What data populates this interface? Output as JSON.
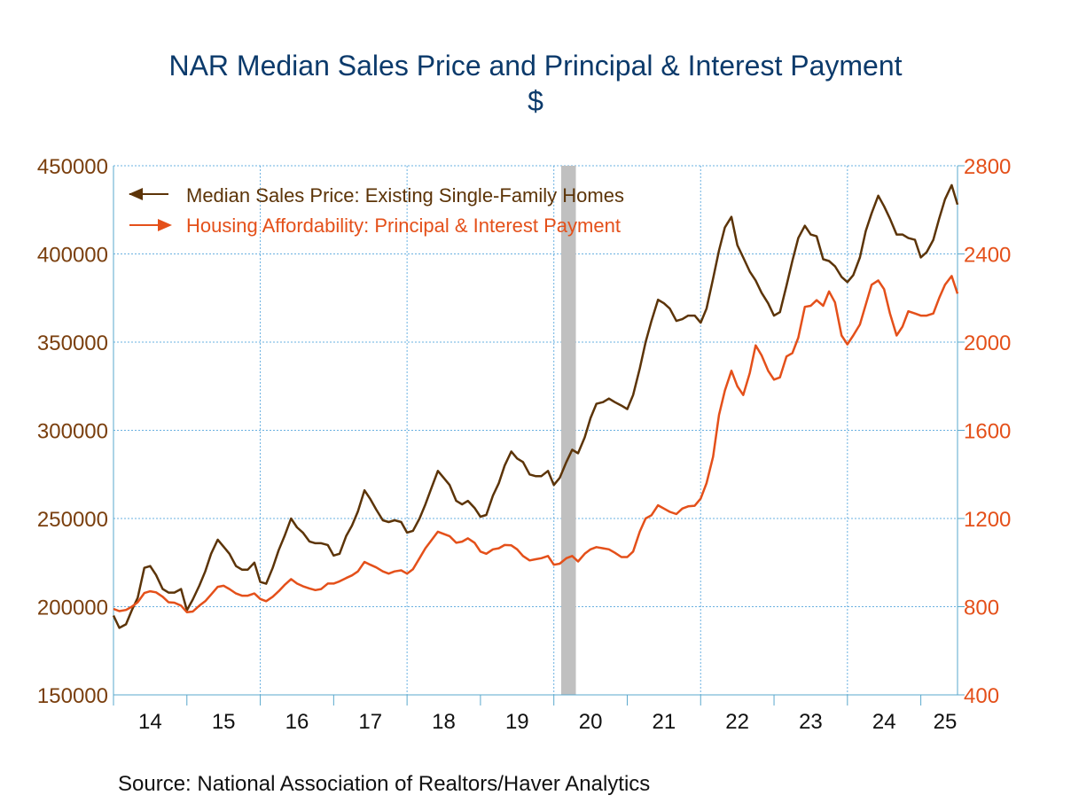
{
  "chart_data": {
    "type": "line",
    "title": "NAR Median Sales Price and Principal & Interest Payment",
    "subtitle": "$",
    "source": "Source:  National Association of Realtors/Haver Analytics",
    "x_tick_labels": [
      "14",
      "15",
      "16",
      "17",
      "18",
      "19",
      "20",
      "21",
      "22",
      "23",
      "24",
      "25"
    ],
    "x_range": [
      2014.0,
      2025.5
    ],
    "recession": {
      "start": 2020.1,
      "end": 2020.3
    },
    "y_left": {
      "range": [
        150000,
        450000
      ],
      "ticks": [
        150000,
        200000,
        250000,
        300000,
        350000,
        400000,
        450000
      ],
      "tick_labels": [
        "150000",
        "200000",
        "250000",
        "300000",
        "350000",
        "400000",
        "450000"
      ],
      "color": "#7a3f0e"
    },
    "y_right": {
      "range": [
        400,
        2800
      ],
      "ticks": [
        400,
        800,
        1200,
        1600,
        2000,
        2400,
        2800
      ],
      "tick_labels": [
        "400",
        "800",
        "1200",
        "1600",
        "2000",
        "2400",
        "2800"
      ],
      "color": "#e4501a"
    },
    "series": [
      {
        "name": "Median Sales Price: Existing Single-Family Homes",
        "axis": "left",
        "color": "#5c3408",
        "values": [
          [
            2014.0,
            195000
          ],
          [
            2014.08,
            188000
          ],
          [
            2014.17,
            190000
          ],
          [
            2014.25,
            198000
          ],
          [
            2014.33,
            205000
          ],
          [
            2014.42,
            222000
          ],
          [
            2014.5,
            223000
          ],
          [
            2014.58,
            218000
          ],
          [
            2014.67,
            210000
          ],
          [
            2014.75,
            208000
          ],
          [
            2014.83,
            208000
          ],
          [
            2014.92,
            210000
          ],
          [
            2015.0,
            198000
          ],
          [
            2015.08,
            204000
          ],
          [
            2015.17,
            212000
          ],
          [
            2015.25,
            220000
          ],
          [
            2015.33,
            230000
          ],
          [
            2015.42,
            238000
          ],
          [
            2015.5,
            234000
          ],
          [
            2015.58,
            230000
          ],
          [
            2015.67,
            223000
          ],
          [
            2015.75,
            221000
          ],
          [
            2015.83,
            221000
          ],
          [
            2015.92,
            225000
          ],
          [
            2016.0,
            214000
          ],
          [
            2016.08,
            213000
          ],
          [
            2016.17,
            222000
          ],
          [
            2016.25,
            232000
          ],
          [
            2016.33,
            240000
          ],
          [
            2016.42,
            250000
          ],
          [
            2016.5,
            245000
          ],
          [
            2016.58,
            242000
          ],
          [
            2016.67,
            237000
          ],
          [
            2016.75,
            236000
          ],
          [
            2016.83,
            236000
          ],
          [
            2016.92,
            235000
          ],
          [
            2017.0,
            229000
          ],
          [
            2017.08,
            230000
          ],
          [
            2017.17,
            240000
          ],
          [
            2017.25,
            246000
          ],
          [
            2017.33,
            254000
          ],
          [
            2017.42,
            266000
          ],
          [
            2017.5,
            261000
          ],
          [
            2017.58,
            255000
          ],
          [
            2017.67,
            249000
          ],
          [
            2017.75,
            248000
          ],
          [
            2017.83,
            249000
          ],
          [
            2017.92,
            248000
          ],
          [
            2018.0,
            242000
          ],
          [
            2018.08,
            243000
          ],
          [
            2018.17,
            250000
          ],
          [
            2018.25,
            258000
          ],
          [
            2018.33,
            267000
          ],
          [
            2018.42,
            277000
          ],
          [
            2018.5,
            273000
          ],
          [
            2018.58,
            269000
          ],
          [
            2018.67,
            260000
          ],
          [
            2018.75,
            258000
          ],
          [
            2018.83,
            260000
          ],
          [
            2018.92,
            256000
          ],
          [
            2019.0,
            251000
          ],
          [
            2019.08,
            252000
          ],
          [
            2019.17,
            263000
          ],
          [
            2019.25,
            270000
          ],
          [
            2019.33,
            280000
          ],
          [
            2019.42,
            288000
          ],
          [
            2019.5,
            284000
          ],
          [
            2019.58,
            282000
          ],
          [
            2019.67,
            275000
          ],
          [
            2019.75,
            274000
          ],
          [
            2019.83,
            274000
          ],
          [
            2019.92,
            277000
          ],
          [
            2020.0,
            269000
          ],
          [
            2020.08,
            273000
          ],
          [
            2020.17,
            282000
          ],
          [
            2020.25,
            289000
          ],
          [
            2020.33,
            287000
          ],
          [
            2020.42,
            296000
          ],
          [
            2020.5,
            307000
          ],
          [
            2020.58,
            315000
          ],
          [
            2020.67,
            316000
          ],
          [
            2020.75,
            318000
          ],
          [
            2020.83,
            316000
          ],
          [
            2020.92,
            314000
          ],
          [
            2021.0,
            312000
          ],
          [
            2021.08,
            320000
          ],
          [
            2021.17,
            335000
          ],
          [
            2021.25,
            350000
          ],
          [
            2021.33,
            362000
          ],
          [
            2021.42,
            374000
          ],
          [
            2021.5,
            372000
          ],
          [
            2021.58,
            369000
          ],
          [
            2021.67,
            362000
          ],
          [
            2021.75,
            363000
          ],
          [
            2021.83,
            365000
          ],
          [
            2021.92,
            365000
          ],
          [
            2022.0,
            361000
          ],
          [
            2022.08,
            369000
          ],
          [
            2022.17,
            386000
          ],
          [
            2022.25,
            402000
          ],
          [
            2022.33,
            415000
          ],
          [
            2022.42,
            421000
          ],
          [
            2022.5,
            405000
          ],
          [
            2022.58,
            398000
          ],
          [
            2022.67,
            390000
          ],
          [
            2022.75,
            385000
          ],
          [
            2022.83,
            378000
          ],
          [
            2022.92,
            372000
          ],
          [
            2023.0,
            365000
          ],
          [
            2023.08,
            367000
          ],
          [
            2023.17,
            382000
          ],
          [
            2023.25,
            396000
          ],
          [
            2023.33,
            409000
          ],
          [
            2023.42,
            416000
          ],
          [
            2023.5,
            411000
          ],
          [
            2023.58,
            410000
          ],
          [
            2023.67,
            397000
          ],
          [
            2023.75,
            396000
          ],
          [
            2023.83,
            393000
          ],
          [
            2023.92,
            387000
          ],
          [
            2024.0,
            384000
          ],
          [
            2024.08,
            388000
          ],
          [
            2024.17,
            398000
          ],
          [
            2024.25,
            413000
          ],
          [
            2024.33,
            423000
          ],
          [
            2024.42,
            433000
          ],
          [
            2024.5,
            427000
          ],
          [
            2024.58,
            420000
          ],
          [
            2024.67,
            411000
          ],
          [
            2024.75,
            411000
          ],
          [
            2024.83,
            409000
          ],
          [
            2024.92,
            408000
          ],
          [
            2025.0,
            398000
          ],
          [
            2025.08,
            401000
          ],
          [
            2025.17,
            408000
          ],
          [
            2025.25,
            420000
          ],
          [
            2025.33,
            431000
          ],
          [
            2025.42,
            439000
          ],
          [
            2025.5,
            428000
          ]
        ]
      },
      {
        "name": "Housing Affordability: Principal & Interest Payment",
        "axis": "right",
        "color": "#e4501a",
        "values": [
          [
            2014.0,
            790
          ],
          [
            2014.08,
            780
          ],
          [
            2014.17,
            785
          ],
          [
            2014.25,
            800
          ],
          [
            2014.33,
            820
          ],
          [
            2014.42,
            862
          ],
          [
            2014.5,
            870
          ],
          [
            2014.58,
            865
          ],
          [
            2014.67,
            845
          ],
          [
            2014.75,
            820
          ],
          [
            2014.83,
            818
          ],
          [
            2014.92,
            805
          ],
          [
            2015.0,
            775
          ],
          [
            2015.08,
            778
          ],
          [
            2015.17,
            805
          ],
          [
            2015.25,
            825
          ],
          [
            2015.33,
            855
          ],
          [
            2015.42,
            890
          ],
          [
            2015.5,
            895
          ],
          [
            2015.58,
            880
          ],
          [
            2015.67,
            860
          ],
          [
            2015.75,
            850
          ],
          [
            2015.83,
            850
          ],
          [
            2015.92,
            860
          ],
          [
            2016.0,
            835
          ],
          [
            2016.08,
            825
          ],
          [
            2016.17,
            845
          ],
          [
            2016.25,
            870
          ],
          [
            2016.33,
            898
          ],
          [
            2016.42,
            925
          ],
          [
            2016.5,
            905
          ],
          [
            2016.58,
            893
          ],
          [
            2016.67,
            883
          ],
          [
            2016.75,
            875
          ],
          [
            2016.83,
            880
          ],
          [
            2016.92,
            905
          ],
          [
            2017.0,
            905
          ],
          [
            2017.08,
            915
          ],
          [
            2017.17,
            930
          ],
          [
            2017.25,
            942
          ],
          [
            2017.33,
            960
          ],
          [
            2017.42,
            1003
          ],
          [
            2017.5,
            990
          ],
          [
            2017.58,
            978
          ],
          [
            2017.67,
            960
          ],
          [
            2017.75,
            950
          ],
          [
            2017.83,
            960
          ],
          [
            2017.92,
            965
          ],
          [
            2018.0,
            950
          ],
          [
            2018.08,
            970
          ],
          [
            2018.17,
            1020
          ],
          [
            2018.25,
            1065
          ],
          [
            2018.33,
            1100
          ],
          [
            2018.42,
            1140
          ],
          [
            2018.5,
            1130
          ],
          [
            2018.58,
            1120
          ],
          [
            2018.67,
            1090
          ],
          [
            2018.75,
            1095
          ],
          [
            2018.83,
            1110
          ],
          [
            2018.92,
            1090
          ],
          [
            2019.0,
            1050
          ],
          [
            2019.08,
            1040
          ],
          [
            2019.17,
            1060
          ],
          [
            2019.25,
            1065
          ],
          [
            2019.33,
            1080
          ],
          [
            2019.42,
            1078
          ],
          [
            2019.5,
            1060
          ],
          [
            2019.58,
            1030
          ],
          [
            2019.67,
            1010
          ],
          [
            2019.75,
            1015
          ],
          [
            2019.83,
            1020
          ],
          [
            2019.92,
            1030
          ],
          [
            2020.0,
            990
          ],
          [
            2020.08,
            995
          ],
          [
            2020.17,
            1020
          ],
          [
            2020.25,
            1030
          ],
          [
            2020.33,
            1005
          ],
          [
            2020.42,
            1040
          ],
          [
            2020.5,
            1060
          ],
          [
            2020.58,
            1070
          ],
          [
            2020.67,
            1065
          ],
          [
            2020.75,
            1060
          ],
          [
            2020.83,
            1045
          ],
          [
            2020.92,
            1025
          ],
          [
            2021.0,
            1025
          ],
          [
            2021.08,
            1050
          ],
          [
            2021.17,
            1140
          ],
          [
            2021.25,
            1200
          ],
          [
            2021.33,
            1215
          ],
          [
            2021.42,
            1260
          ],
          [
            2021.5,
            1245
          ],
          [
            2021.58,
            1230
          ],
          [
            2021.67,
            1220
          ],
          [
            2021.75,
            1245
          ],
          [
            2021.83,
            1255
          ],
          [
            2021.92,
            1258
          ],
          [
            2022.0,
            1290
          ],
          [
            2022.08,
            1360
          ],
          [
            2022.17,
            1480
          ],
          [
            2022.25,
            1670
          ],
          [
            2022.33,
            1780
          ],
          [
            2022.42,
            1870
          ],
          [
            2022.5,
            1800
          ],
          [
            2022.58,
            1760
          ],
          [
            2022.67,
            1860
          ],
          [
            2022.75,
            1985
          ],
          [
            2022.83,
            1940
          ],
          [
            2022.92,
            1870
          ],
          [
            2023.0,
            1830
          ],
          [
            2023.08,
            1840
          ],
          [
            2023.17,
            1935
          ],
          [
            2023.25,
            1950
          ],
          [
            2023.33,
            2020
          ],
          [
            2023.42,
            2160
          ],
          [
            2023.5,
            2165
          ],
          [
            2023.58,
            2190
          ],
          [
            2023.67,
            2165
          ],
          [
            2023.75,
            2230
          ],
          [
            2023.83,
            2180
          ],
          [
            2023.92,
            2030
          ],
          [
            2024.0,
            1990
          ],
          [
            2024.08,
            2030
          ],
          [
            2024.17,
            2080
          ],
          [
            2024.25,
            2170
          ],
          [
            2024.33,
            2260
          ],
          [
            2024.42,
            2280
          ],
          [
            2024.5,
            2240
          ],
          [
            2024.58,
            2130
          ],
          [
            2024.67,
            2030
          ],
          [
            2024.75,
            2070
          ],
          [
            2024.83,
            2140
          ],
          [
            2024.92,
            2130
          ],
          [
            2025.0,
            2120
          ],
          [
            2025.08,
            2120
          ],
          [
            2025.17,
            2130
          ],
          [
            2025.25,
            2200
          ],
          [
            2025.33,
            2260
          ],
          [
            2025.42,
            2300
          ],
          [
            2025.5,
            2220
          ]
        ]
      }
    ]
  }
}
